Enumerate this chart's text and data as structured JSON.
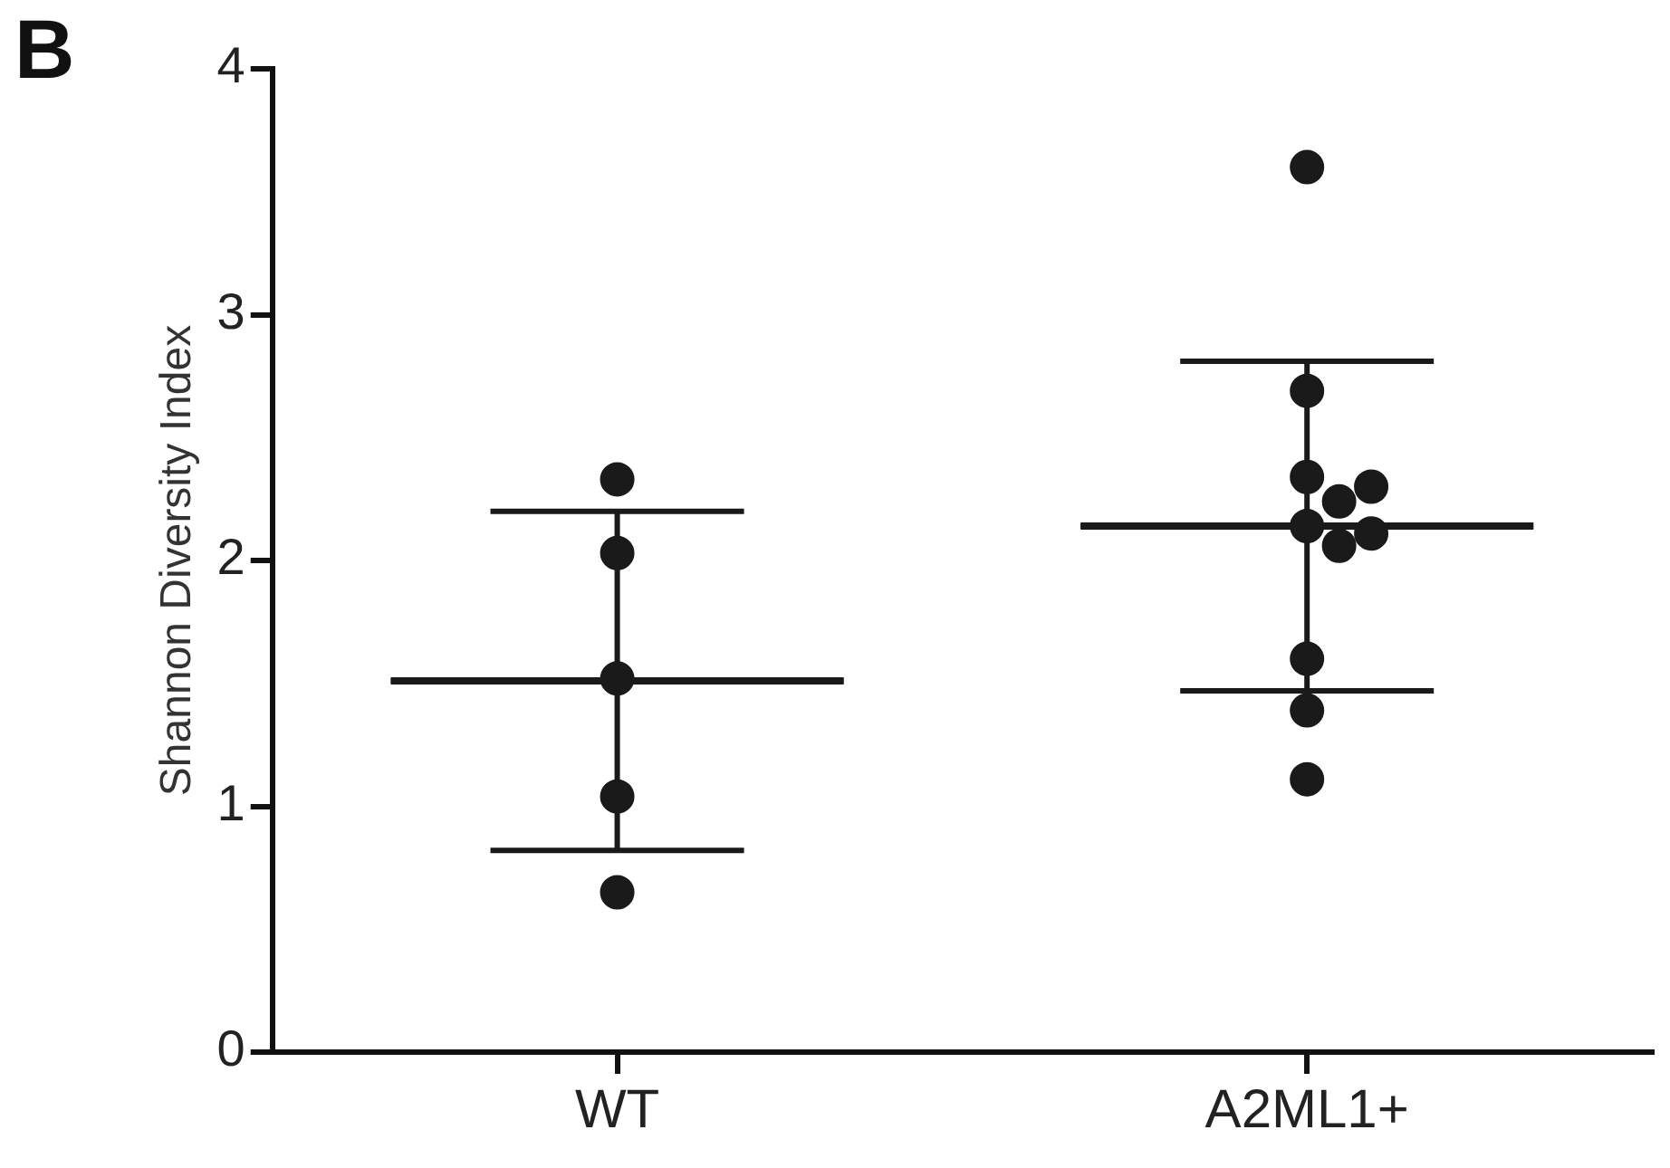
{
  "chart_data": {
    "type": "scatter",
    "ylabel": "Shannon Diversity Index",
    "categories": [
      "WT",
      "A2ML1+"
    ],
    "ylim": [
      0,
      4
    ],
    "yticks": [
      0,
      1,
      2,
      3,
      4
    ],
    "grid": false,
    "legend": false,
    "marker": "circle",
    "annotations": [
      "B"
    ],
    "series": [
      {
        "color": "#1a1a1a",
        "x": [
          "WT",
          "WT",
          "WT",
          "WT",
          "WT",
          "A2ML1+",
          "A2ML1+",
          "A2ML1+",
          "A2ML1+",
          "A2ML1+",
          "A2ML1+",
          "A2ML1+",
          "A2ML1+",
          "A2ML1+",
          "A2ML1+",
          "A2ML1+"
        ],
        "values": [
          2.33,
          2.03,
          1.52,
          1.04,
          0.65,
          3.6,
          2.69,
          2.34,
          2.3,
          2.14,
          2.06,
          2.11,
          2.24,
          1.6,
          1.39,
          1.11
        ]
      },
      {
        "type": "box",
        "color": "#1a1a1a",
        "boxes": [
          {
            "low": 0.82,
            "q1": 1.51,
            "median": 1.51,
            "q3": 1.51,
            "high": 2.2
          },
          {
            "low": 1.47,
            "q1": 2.14,
            "median": 2.14,
            "q3": 2.14,
            "high": 2.81
          }
        ]
      }
    ]
  }
}
